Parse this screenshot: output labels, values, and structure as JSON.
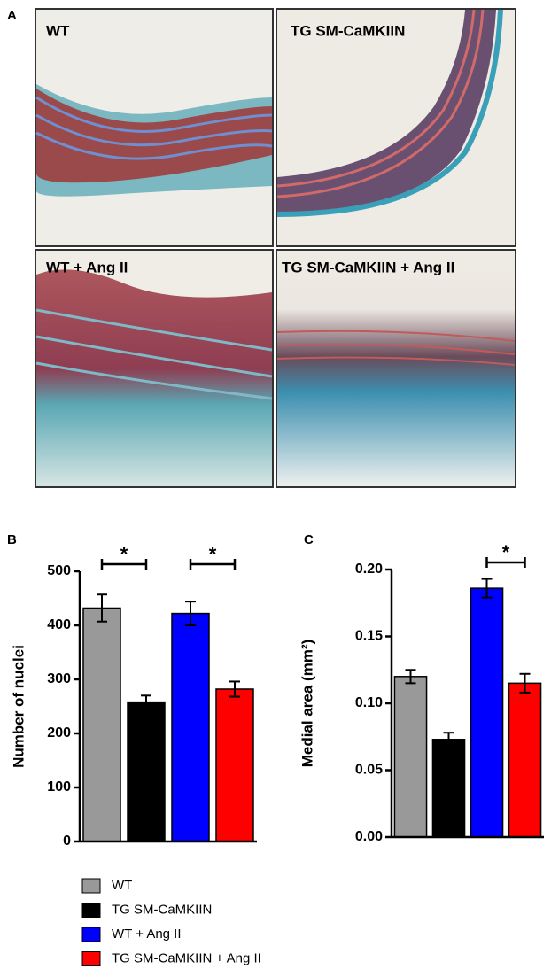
{
  "panel_a": {
    "label": "A",
    "images": [
      "WT",
      "TG SM-CaMKIIN",
      "WT + Ang II",
      "TG SM-CaMKIIN + Ang II"
    ]
  },
  "legend": [
    {
      "name": "WT",
      "color": "#999999"
    },
    {
      "name": "TG SM-CaMKIIN",
      "color": "#000000"
    },
    {
      "name": "WT + Ang II",
      "color": "#0000ff"
    },
    {
      "name": "TG SM-CaMKIIN + Ang II",
      "color": "#ff0000"
    }
  ],
  "chart_data": [
    {
      "type": "bar",
      "label": "B",
      "y_label": "Number of nuclei",
      "values": [
        432,
        258,
        422,
        282
      ],
      "errors": [
        25,
        12,
        22,
        14
      ],
      "ylim": [
        0,
        500
      ],
      "yticks": [
        0,
        100,
        200,
        300,
        400,
        500
      ],
      "significance": [
        {
          "label": "*",
          "between": [
            0,
            1
          ]
        },
        {
          "label": "*",
          "between": [
            2,
            3
          ]
        }
      ]
    },
    {
      "type": "bar",
      "label": "C",
      "y_label": "Medial area (mm²)",
      "values": [
        0.12,
        0.073,
        0.186,
        0.115
      ],
      "errors": [
        0.005,
        0.005,
        0.007,
        0.007
      ],
      "ylim": [
        0,
        0.2
      ],
      "yticks": [
        {
          "value": 0,
          "label": "0.00"
        },
        {
          "value": 0.05,
          "label": "0.05"
        },
        {
          "value": 0.1,
          "label": "0.10"
        },
        {
          "value": 0.15,
          "label": "0.15"
        },
        {
          "value": 0.2,
          "label": "0.20"
        }
      ],
      "significance": [
        {
          "label": "*",
          "between": [
            2,
            3
          ]
        }
      ]
    }
  ]
}
